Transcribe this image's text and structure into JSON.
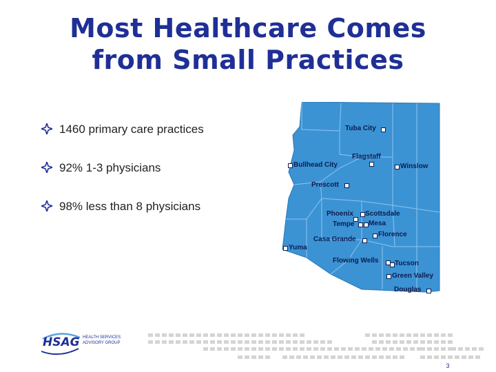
{
  "title": {
    "line1": "Most Healthcare Comes",
    "line2": "from Small Practices"
  },
  "bullets": [
    "1460 primary care practices",
    "92% 1-3 physicians",
    "98% less than 8 physicians"
  ],
  "map": {
    "fill_color": "#3b93d4",
    "cities": [
      "Tuba City",
      "Flagstaff",
      "Bullhead City",
      "Winslow",
      "Prescott",
      "Phoenix",
      "Scottsdale",
      "Tempe",
      "Mesa",
      "Florence",
      "Casa Grande",
      "Yuma",
      "Flowing Wells",
      "Tucson",
      "Green Valley",
      "Douglas"
    ]
  },
  "logo": {
    "acronym": "HSAG",
    "line1": "HEALTH SERVICES",
    "line2": "ADVISORY GROUP"
  },
  "page_number": "3",
  "colors": {
    "title": "#1f2f96",
    "accent": "#1f2f96",
    "map": "#3b93d4",
    "pattern": "#d4d4d4"
  }
}
